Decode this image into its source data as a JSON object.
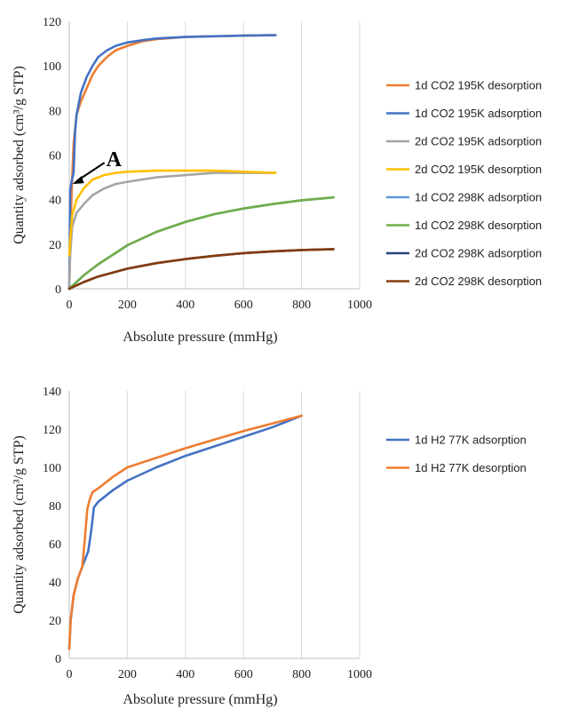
{
  "chart_data": [
    {
      "type": "line",
      "xlabel": "Absolute pressure (mmHg)",
      "ylabel": "Quantity adsorbed (cm³/g STP)",
      "xlim": [
        0,
        1000
      ],
      "ylim": [
        0,
        120
      ],
      "xticks": [
        0,
        200,
        400,
        600,
        800,
        1000
      ],
      "yticks": [
        0,
        20,
        40,
        60,
        80,
        100,
        120
      ],
      "grid": "vertical",
      "legend_position": "right",
      "annotations": [
        {
          "text": "A",
          "points_to": [
            5,
            47
          ]
        }
      ],
      "series": [
        {
          "name": "1d CO2 195K desorption",
          "color": "#ed7d31",
          "points": [
            [
              0,
              0
            ],
            [
              5,
              30
            ],
            [
              10,
              50
            ],
            [
              15,
              65
            ],
            [
              25,
              78
            ],
            [
              40,
              84
            ],
            [
              60,
              90
            ],
            [
              80,
              96
            ],
            [
              100,
              100
            ],
            [
              130,
              104
            ],
            [
              160,
              107
            ],
            [
              200,
              109
            ],
            [
              250,
              111
            ],
            [
              300,
              112
            ],
            [
              400,
              113
            ],
            [
              500,
              113.3
            ],
            [
              600,
              113.6
            ],
            [
              710,
              113.8
            ]
          ]
        },
        {
          "name": "1d CO2 195K adsorption",
          "color": "#4472c4",
          "points": [
            [
              0,
              0
            ],
            [
              3,
              44
            ],
            [
              8,
              48
            ],
            [
              15,
              52
            ],
            [
              20,
              70
            ],
            [
              25,
              78
            ],
            [
              40,
              88
            ],
            [
              60,
              95
            ],
            [
              80,
              100
            ],
            [
              100,
              104
            ],
            [
              130,
              107
            ],
            [
              160,
              109
            ],
            [
              200,
              110.5
            ],
            [
              250,
              111.5
            ],
            [
              300,
              112.3
            ],
            [
              400,
              113
            ],
            [
              500,
              113.3
            ],
            [
              600,
              113.6
            ],
            [
              710,
              113.8
            ]
          ]
        },
        {
          "name": "2d CO2 195K adsorption",
          "color": "#a5a5a5",
          "points": [
            [
              0,
              0
            ],
            [
              3,
              15
            ],
            [
              10,
              28
            ],
            [
              25,
              34
            ],
            [
              50,
              38
            ],
            [
              80,
              42
            ],
            [
              120,
              45
            ],
            [
              160,
              47
            ],
            [
              200,
              48
            ],
            [
              300,
              50
            ],
            [
              400,
              51
            ],
            [
              500,
              52
            ],
            [
              600,
              52
            ],
            [
              710,
              52
            ]
          ]
        },
        {
          "name": "2d CO2 195K desorption",
          "color": "#ffc000",
          "points": [
            [
              0,
              15
            ],
            [
              3,
              22
            ],
            [
              10,
              33
            ],
            [
              25,
              40
            ],
            [
              50,
              45
            ],
            [
              80,
              49
            ],
            [
              120,
              51
            ],
            [
              160,
              52
            ],
            [
              200,
              52.5
            ],
            [
              300,
              53
            ],
            [
              400,
              53
            ],
            [
              500,
              53
            ],
            [
              600,
              52.5
            ],
            [
              710,
              52
            ]
          ]
        },
        {
          "name": "1d CO2 298K adsorption",
          "color": "#5b9bd5",
          "points": [
            [
              0,
              0
            ],
            [
              50,
              6
            ],
            [
              100,
              11
            ],
            [
              200,
              19.5
            ],
            [
              300,
              25.5
            ],
            [
              400,
              30
            ],
            [
              500,
              33.5
            ],
            [
              600,
              36
            ],
            [
              700,
              38
            ],
            [
              800,
              39.7
            ],
            [
              910,
              41
            ]
          ]
        },
        {
          "name": "1d CO2 298K desorption",
          "color": "#70ad47",
          "points": [
            [
              0,
              0
            ],
            [
              50,
              6
            ],
            [
              100,
              11
            ],
            [
              200,
              19.5
            ],
            [
              300,
              25.5
            ],
            [
              400,
              30
            ],
            [
              500,
              33.5
            ],
            [
              600,
              36
            ],
            [
              700,
              38
            ],
            [
              800,
              39.7
            ],
            [
              910,
              41
            ]
          ]
        },
        {
          "name": "2d CO2 298K adsorption",
          "color": "#264478",
          "points": [
            [
              0,
              0
            ],
            [
              50,
              3
            ],
            [
              100,
              5.5
            ],
            [
              200,
              9
            ],
            [
              300,
              11.5
            ],
            [
              400,
              13.3
            ],
            [
              500,
              14.8
            ],
            [
              600,
              16
            ],
            [
              700,
              16.8
            ],
            [
              800,
              17.4
            ],
            [
              910,
              17.8
            ]
          ]
        },
        {
          "name": "2d CO2 298K desorption",
          "color": "#843c0c",
          "points": [
            [
              0,
              0
            ],
            [
              50,
              3
            ],
            [
              100,
              5.5
            ],
            [
              200,
              9
            ],
            [
              300,
              11.5
            ],
            [
              400,
              13.3
            ],
            [
              500,
              14.8
            ],
            [
              600,
              16
            ],
            [
              700,
              16.8
            ],
            [
              800,
              17.4
            ],
            [
              910,
              17.8
            ]
          ]
        }
      ]
    },
    {
      "type": "line",
      "xlabel": "Absolute pressure (mmHg)",
      "ylabel": "Quantity adsorbed (cm³/g STP)",
      "xlim": [
        0,
        1000
      ],
      "ylim": [
        0,
        140
      ],
      "xticks": [
        0,
        200,
        400,
        600,
        800,
        1000
      ],
      "yticks": [
        0,
        20,
        40,
        60,
        80,
        100,
        120,
        140
      ],
      "grid": "vertical",
      "legend_position": "right",
      "series": [
        {
          "name": "1d H2 77K adsorption",
          "color": "#4472c4",
          "points": [
            [
              0,
              5
            ],
            [
              5,
              20
            ],
            [
              15,
              33
            ],
            [
              30,
              42
            ],
            [
              50,
              50
            ],
            [
              65,
              56
            ],
            [
              75,
              66
            ],
            [
              85,
              79
            ],
            [
              100,
              82
            ],
            [
              150,
              88
            ],
            [
              200,
              93
            ],
            [
              300,
              100
            ],
            [
              400,
              106
            ],
            [
              500,
              111
            ],
            [
              600,
              116
            ],
            [
              700,
              121
            ],
            [
              800,
              127
            ]
          ]
        },
        {
          "name": "1d H2 77K desorption",
          "color": "#ed7d31",
          "points": [
            [
              0,
              5
            ],
            [
              5,
              20
            ],
            [
              15,
              33
            ],
            [
              30,
              42
            ],
            [
              45,
              48
            ],
            [
              55,
              65
            ],
            [
              62,
              78
            ],
            [
              70,
              83
            ],
            [
              80,
              87
            ],
            [
              100,
              89
            ],
            [
              150,
              95
            ],
            [
              200,
              100
            ],
            [
              300,
              105
            ],
            [
              400,
              110
            ],
            [
              500,
              114.5
            ],
            [
              600,
              119
            ],
            [
              700,
              123
            ],
            [
              800,
              127
            ]
          ]
        }
      ]
    }
  ]
}
